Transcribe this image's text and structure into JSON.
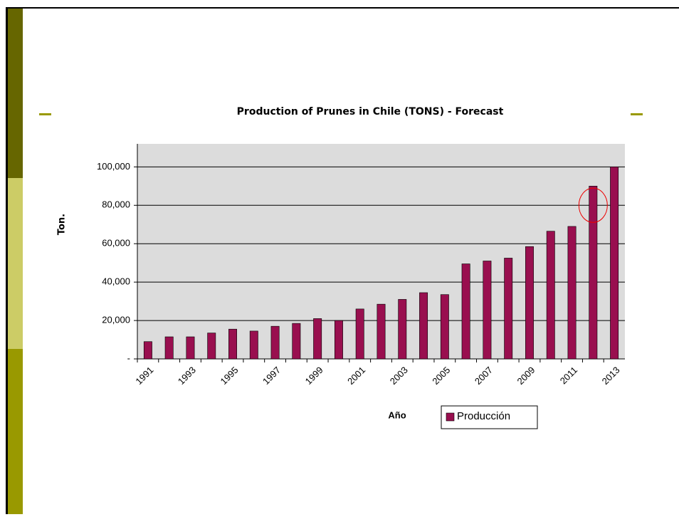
{
  "chart_data": {
    "type": "bar",
    "title": "Production of Prunes in Chile (TONS) - Forecast",
    "y_label": "Ton.",
    "x_label": "Año",
    "categories": [
      "1991",
      null,
      "1993",
      null,
      "1995",
      null,
      "1997",
      null,
      "1999",
      null,
      "2001",
      null,
      "2003",
      null,
      "2005",
      null,
      "2007",
      null,
      "2009",
      null,
      "2011",
      null,
      "2013"
    ],
    "series": [
      {
        "name": "Producción",
        "color": "#990f4f",
        "values": [
          9000,
          11500,
          11500,
          13500,
          15500,
          14500,
          17000,
          18500,
          21000,
          20000,
          26000,
          28500,
          31000,
          34500,
          33500,
          49500,
          51000,
          52500,
          58500,
          66500,
          69000,
          90000,
          100000
        ]
      }
    ],
    "ylim": [
      0,
      112000
    ],
    "yticks": [
      {
        "value": 0,
        "label": "-"
      },
      {
        "value": 20000,
        "label": "20,000"
      },
      {
        "value": 40000,
        "label": "40,000"
      },
      {
        "value": 60000,
        "label": "60,000"
      },
      {
        "value": 80000,
        "label": "80,000"
      },
      {
        "value": 100000,
        "label": "100,000"
      }
    ],
    "grid": true
  }
}
